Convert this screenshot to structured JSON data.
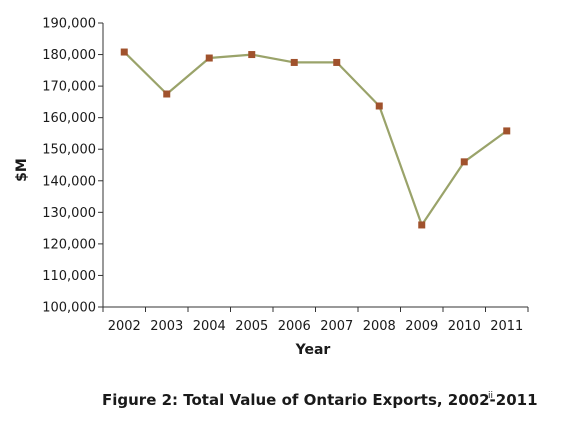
{
  "chart_data": {
    "type": "line",
    "categories": [
      "2002",
      "2003",
      "2004",
      "2005",
      "2006",
      "2007",
      "2008",
      "2009",
      "2010",
      "2011"
    ],
    "series": [
      {
        "values": [
          180800,
          167500,
          178900,
          180000,
          177500,
          177500,
          163700,
          126000,
          146000,
          155800
        ]
      }
    ],
    "title": "",
    "xlabel": "Year",
    "ylabel": "$M",
    "ylim": [
      100000,
      190000
    ],
    "yticks": [
      "100,000",
      "110,000",
      "120,000",
      "130,000",
      "140,000",
      "150,000",
      "160,000",
      "170,000",
      "180,000",
      "190,000"
    ],
    "grid": false,
    "legend": "none",
    "line_color": "#9aa36a",
    "marker_color": "#a0522d"
  },
  "caption": {
    "text": "Figure 2: Total Value of Ontario Exports, 2002-2011",
    "note": "ii"
  }
}
